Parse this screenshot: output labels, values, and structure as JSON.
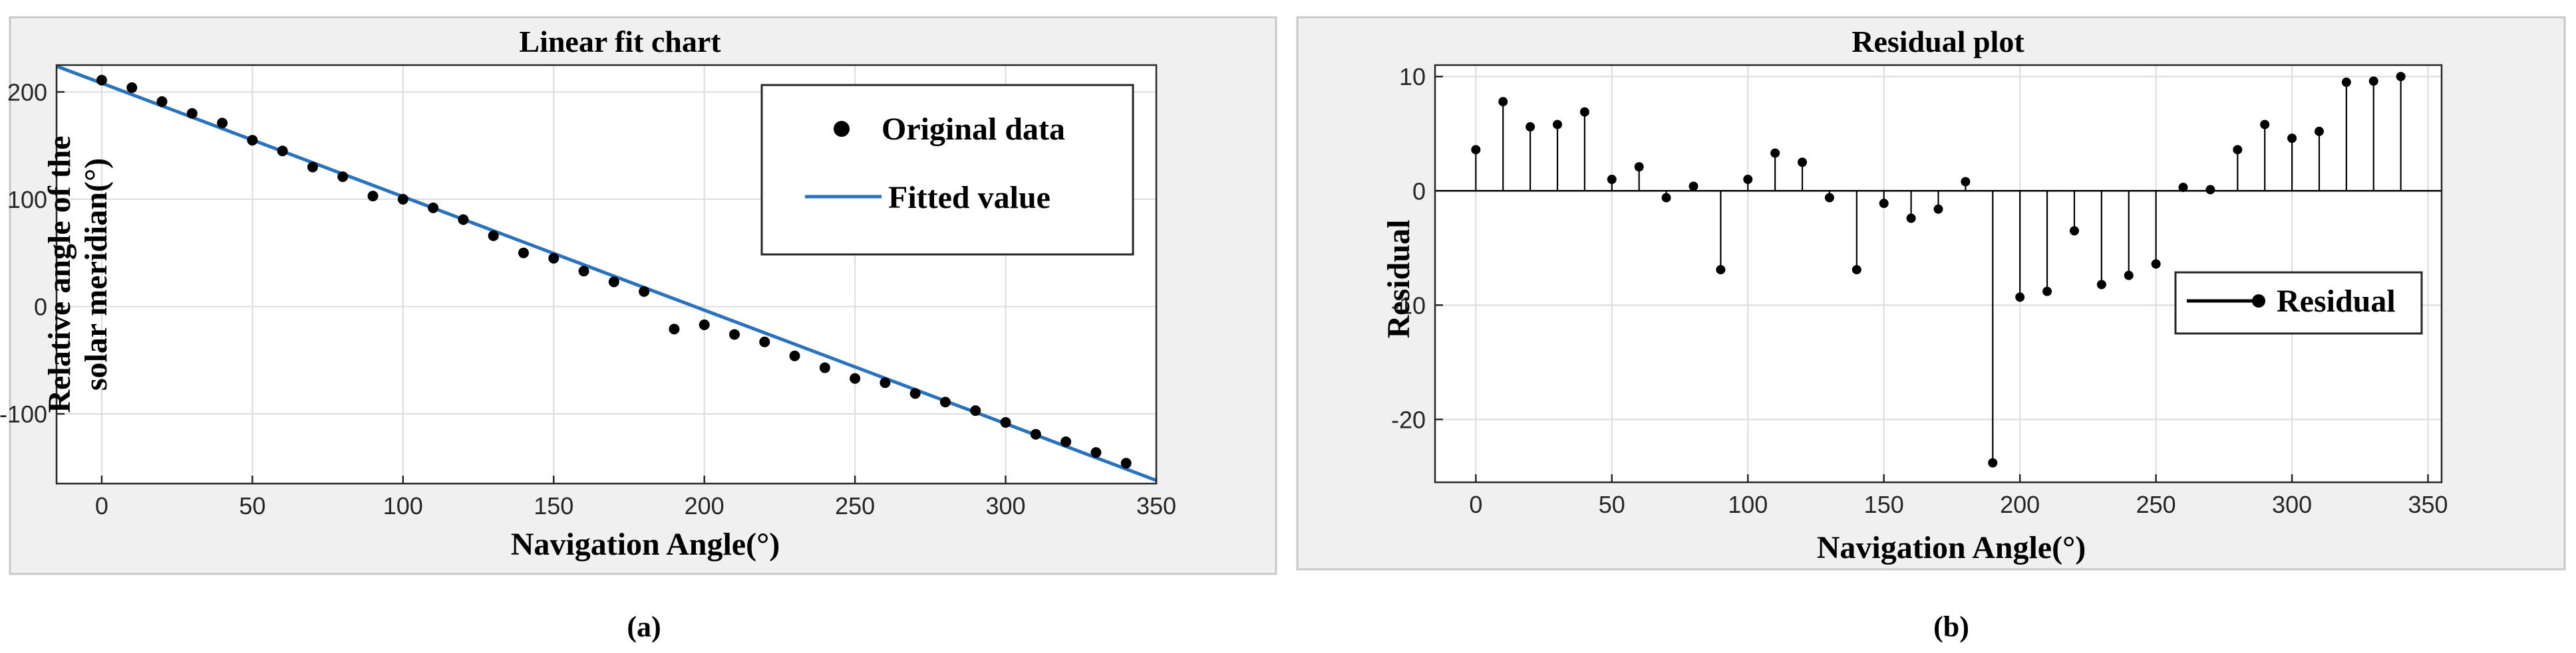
{
  "figure": {
    "caption_a": "(a)",
    "caption_b": "(b)"
  },
  "chart_data": [
    {
      "type": "scatter",
      "title": "Linear fit chart",
      "xlabel": "Navigation Angle(°)",
      "ylabel_line1": "Relative angle of the",
      "ylabel_line2": "solar meridian(°)",
      "xlim": [
        -15,
        350
      ],
      "ylim": [
        -165,
        225
      ],
      "xticks": [
        0,
        50,
        100,
        150,
        200,
        250,
        300,
        350
      ],
      "yticks": [
        -100,
        0,
        100,
        200
      ],
      "xtick_labels": [
        "0",
        "50",
        "100",
        "150",
        "200",
        "250",
        "300",
        "350"
      ],
      "ytick_labels": [
        "-100",
        "0",
        "100",
        "200"
      ],
      "legend": [
        "Original data",
        "Fitted value"
      ],
      "grid": true,
      "series": [
        {
          "name": "Original data",
          "x": [
            0,
            10,
            20,
            30,
            40,
            50,
            60,
            70,
            80,
            90,
            100,
            110,
            120,
            130,
            140,
            150,
            160,
            170,
            180,
            190,
            200,
            210,
            220,
            230,
            240,
            250,
            260,
            270,
            280,
            290,
            300,
            310,
            320,
            330,
            340
          ],
          "y": [
            211,
            204,
            191,
            180,
            171,
            155,
            145,
            130,
            121,
            103,
            100,
            92,
            81,
            66,
            50,
            45,
            33,
            23,
            14,
            -21,
            -17,
            -26,
            -33,
            -46,
            -57,
            -67,
            -71,
            -81,
            -89,
            -97,
            -108,
            -119,
            -126,
            -136,
            -146
          ]
        },
        {
          "name": "Fitted value",
          "x": [
            -15,
            350
          ],
          "y": [
            224,
            -162
          ]
        }
      ]
    },
    {
      "type": "stem",
      "title": "Residual plot",
      "xlabel": "Navigation Angle(°)",
      "ylabel": "Residual",
      "xlim": [
        -15,
        355
      ],
      "ylim": [
        -25.5,
        11
      ],
      "xticks": [
        0,
        50,
        100,
        150,
        200,
        250,
        300,
        350
      ],
      "yticks": [
        -20,
        -10,
        0,
        10
      ],
      "xtick_labels": [
        "0",
        "50",
        "100",
        "150",
        "200",
        "250",
        "300",
        "350"
      ],
      "ytick_labels": [
        "-20",
        "-10",
        "0",
        "10"
      ],
      "legend": [
        "Residual"
      ],
      "grid": true,
      "series": [
        {
          "name": "Residual",
          "x": [
            0,
            10,
            20,
            30,
            40,
            50,
            60,
            70,
            80,
            90,
            100,
            110,
            120,
            130,
            140,
            150,
            160,
            170,
            180,
            190,
            200,
            210,
            220,
            230,
            240,
            250,
            260,
            270,
            280,
            290,
            300,
            310,
            320,
            330,
            340
          ],
          "y": [
            3.6,
            7.8,
            5.6,
            5.8,
            6.9,
            1.0,
            2.1,
            -0.6,
            0.4,
            -6.9,
            1.0,
            3.3,
            2.5,
            -0.6,
            -6.9,
            -1.1,
            -2.4,
            -1.6,
            0.8,
            -23.8,
            -9.3,
            -8.8,
            -3.5,
            -8.2,
            -7.4,
            -6.4,
            0.3,
            0.1,
            3.6,
            5.8,
            4.6,
            5.2,
            9.5,
            9.6,
            10.0
          ]
        }
      ]
    }
  ]
}
